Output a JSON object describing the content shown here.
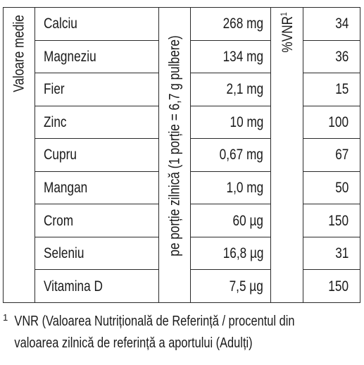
{
  "headers": {
    "average_values": "Valoare medie",
    "per_portion": "pe porție zilnică (1 porție = 6,7 g pulbere)",
    "vnr": "%VNR",
    "vnr_sup": "1"
  },
  "rows": [
    {
      "nutrient": "Calciu",
      "amount": "268 mg",
      "vnr": "34"
    },
    {
      "nutrient": "Magneziu",
      "amount": "134 mg",
      "vnr": "36"
    },
    {
      "nutrient": "Fier",
      "amount": "2,1 mg",
      "vnr": "15"
    },
    {
      "nutrient": "Zinc",
      "amount": "10 mg",
      "vnr": "100"
    },
    {
      "nutrient": "Cupru",
      "amount": "0,67 mg",
      "vnr": "67"
    },
    {
      "nutrient": "Mangan",
      "amount": "1,0 mg",
      "vnr": "50"
    },
    {
      "nutrient": "Crom",
      "amount": "60 µg",
      "vnr": "150"
    },
    {
      "nutrient": "Seleniu",
      "amount": "16,8 µg",
      "vnr": "31"
    },
    {
      "nutrient": "Vitamina D",
      "amount": "7,5 µg",
      "vnr": "150"
    }
  ],
  "footnote": {
    "marker": "1",
    "line1": "VNR (Valoarea Nutrițională de Referință / procentul din",
    "line2": "valoarea zilnică de referință a aportului (Adulți)"
  }
}
